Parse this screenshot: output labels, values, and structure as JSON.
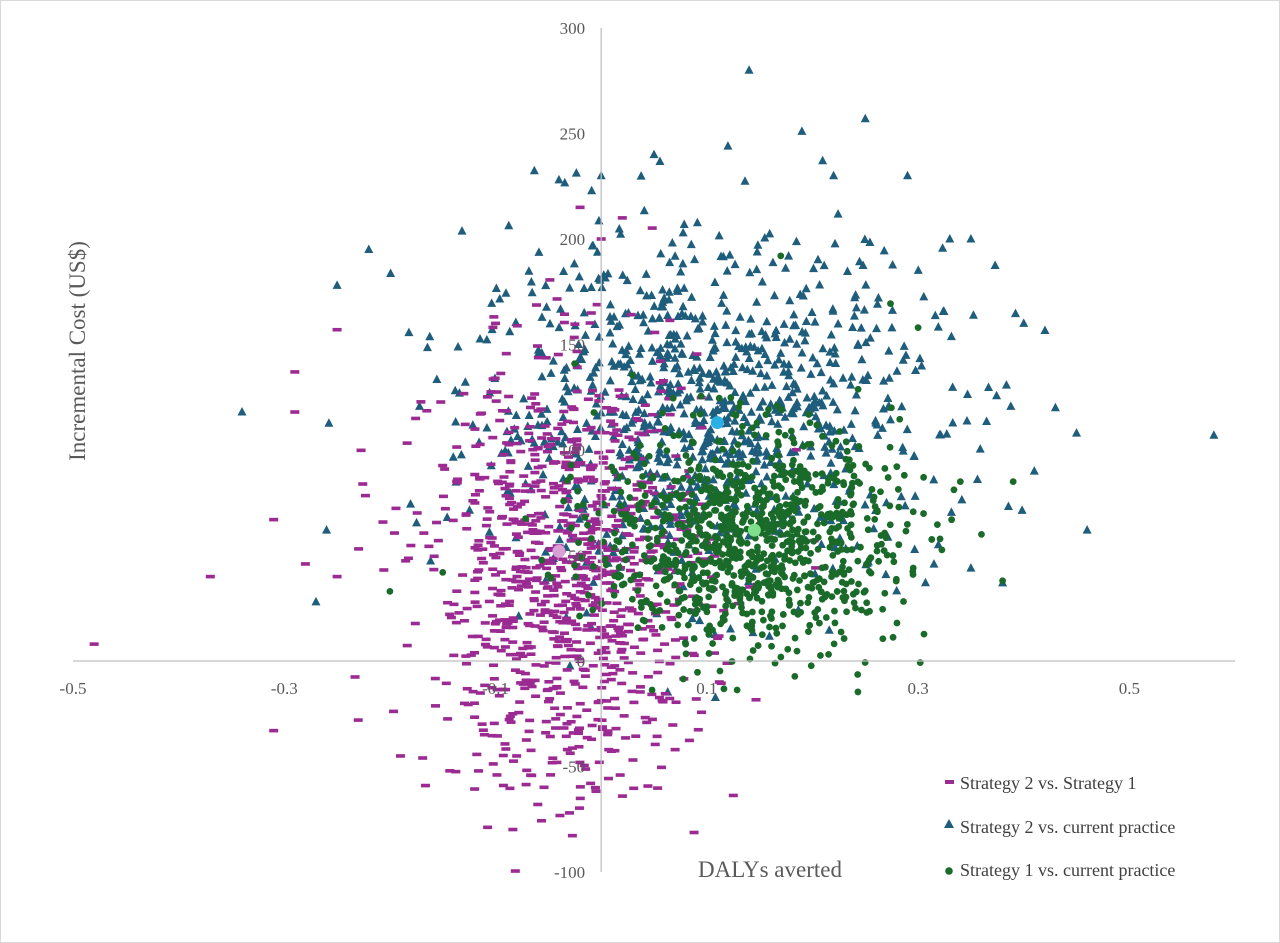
{
  "chart_data": {
    "type": "scatter",
    "title": "",
    "xlabel": "DALYs averted",
    "ylabel": "Incremental Cost (US$)",
    "xlim": [
      -0.5,
      0.6
    ],
    "ylim": [
      -100,
      300
    ],
    "x_ticks": [
      -0.5,
      -0.3,
      -0.1,
      0.1,
      0.3,
      0.5
    ],
    "x_tick_labels": [
      "-0.5",
      "-0.3",
      "-0.1",
      "0.1",
      "0.3",
      "0.5"
    ],
    "y_ticks": [
      -100,
      -50,
      0,
      50,
      100,
      150,
      200,
      250,
      300
    ],
    "y_tick_labels": [
      "-100",
      "-50",
      "0",
      "50",
      "100",
      "150",
      "200",
      "250",
      "300"
    ],
    "grid": false,
    "legend_position": "bottom-right",
    "series": [
      {
        "name": "Strategy 2 vs. Strategy 1",
        "marker": "dash",
        "color": "#9b2a93",
        "mean_point": {
          "x": -0.04,
          "y": 52,
          "color": "#d9a0d6"
        },
        "n_points": 1000,
        "center": [
          -0.03,
          40
        ],
        "spread": [
          0.065,
          50
        ],
        "points": [
          [
            -0.48,
            8
          ],
          [
            -0.37,
            40
          ],
          [
            -0.31,
            67
          ],
          [
            -0.29,
            137
          ],
          [
            -0.29,
            118
          ],
          [
            -0.28,
            46
          ],
          [
            -0.25,
            40
          ],
          [
            -0.25,
            157
          ],
          [
            -0.23,
            -28
          ],
          [
            -0.31,
            -33
          ],
          [
            -0.19,
            -45
          ],
          [
            -0.12,
            -20
          ],
          [
            -0.08,
            -45
          ],
          [
            -0.06,
            -68
          ],
          [
            -0.03,
            -72
          ],
          [
            -0.01,
            -58
          ],
          [
            0.07,
            -42
          ],
          [
            0.09,
            -18
          ],
          [
            0.06,
            8
          ],
          [
            -0.02,
            215
          ],
          [
            0.0,
            200
          ],
          [
            -0.1,
            160
          ],
          [
            0.02,
            210
          ]
        ]
      },
      {
        "name": "Strategy 2 vs. current practice",
        "marker": "triangle",
        "color": "#1f5d7c",
        "mean_point": {
          "x": 0.11,
          "y": 113,
          "color": "#2bb0e6"
        },
        "n_points": 1000,
        "center": [
          0.1,
          118
        ],
        "spread": [
          0.11,
          40
        ],
        "points": [
          [
            0.14,
            280
          ],
          [
            0.25,
            257
          ],
          [
            0.19,
            251
          ],
          [
            0.12,
            244
          ],
          [
            0.29,
            230
          ],
          [
            0.22,
            230
          ],
          [
            -0.04,
            228
          ],
          [
            -0.22,
            195
          ],
          [
            -0.25,
            178
          ],
          [
            -0.34,
            118
          ],
          [
            -0.26,
            62
          ],
          [
            -0.27,
            28
          ],
          [
            0.58,
            107
          ],
          [
            0.46,
            62
          ],
          [
            0.45,
            108
          ],
          [
            0.4,
            160
          ],
          [
            0.38,
            37
          ],
          [
            0.35,
            44
          ],
          [
            0.35,
            200
          ],
          [
            0.33,
            200
          ],
          [
            0.41,
            90
          ],
          [
            0.43,
            120
          ],
          [
            0.0,
            230
          ],
          [
            0.05,
            240
          ]
        ]
      },
      {
        "name": "Strategy 1 vs. current practice",
        "marker": "circle",
        "color": "#1a6b2a",
        "mean_point": {
          "x": 0.145,
          "y": 62,
          "color": "#7ee08a"
        },
        "n_points": 1000,
        "center": [
          0.14,
          58
        ],
        "spread": [
          0.07,
          26
        ],
        "points": [
          [
            0.17,
            192
          ],
          [
            0.3,
            158
          ],
          [
            0.39,
            85
          ],
          [
            0.38,
            38
          ],
          [
            0.08,
            8
          ],
          [
            -0.2,
            33
          ],
          [
            -0.15,
            42
          ],
          [
            0.28,
            18
          ],
          [
            0.36,
            60
          ],
          [
            0.34,
            85
          ]
        ]
      }
    ]
  }
}
